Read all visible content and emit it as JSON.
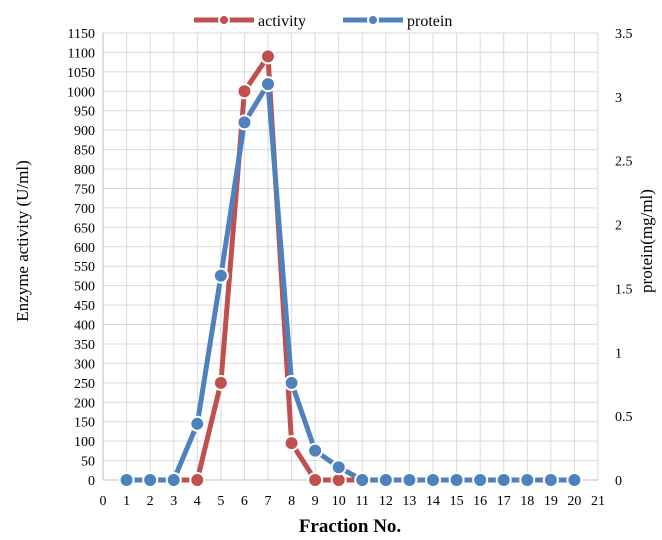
{
  "chart_data": {
    "type": "line",
    "xlabel": "Fraction No.",
    "ylabel_left": "Enzyme activity (U/ml)",
    "ylabel_right": "protein(mg/ml)",
    "xlim": [
      0,
      21
    ],
    "ylim_left": [
      0,
      1150
    ],
    "ylim_right": [
      0,
      3.5
    ],
    "x_ticks": [
      0,
      1,
      2,
      3,
      4,
      5,
      6,
      7,
      8,
      9,
      10,
      11,
      12,
      13,
      14,
      15,
      16,
      17,
      18,
      19,
      20,
      21
    ],
    "y_left_ticks": [
      0,
      50,
      100,
      150,
      200,
      250,
      300,
      350,
      400,
      450,
      500,
      550,
      600,
      650,
      700,
      750,
      800,
      850,
      900,
      950,
      1000,
      1050,
      1100,
      1150
    ],
    "y_right_ticks": [
      "0",
      "0.5",
      "1",
      "1.5",
      "2",
      "2.5",
      "3",
      "3.5"
    ],
    "grid": true,
    "legend_position": "top-center",
    "series": [
      {
        "name": "activity",
        "axis": "left",
        "color": "#c0504d",
        "x": [
          1,
          2,
          3,
          4,
          5,
          6,
          7,
          8,
          9,
          10,
          11,
          12,
          13,
          14,
          15,
          16,
          17,
          18,
          19,
          20
        ],
        "values": [
          0,
          0,
          0,
          0,
          250,
          1000,
          1090,
          95,
          0,
          0,
          0,
          0,
          0,
          0,
          0,
          0,
          0,
          0,
          0,
          0
        ]
      },
      {
        "name": "protein",
        "axis": "right",
        "color": "#4f81bd",
        "x": [
          1,
          2,
          3,
          4,
          5,
          6,
          7,
          8,
          9,
          10,
          11,
          12,
          13,
          14,
          15,
          16,
          17,
          18,
          19,
          20
        ],
        "values": [
          0,
          0,
          0,
          0.44,
          1.6,
          2.8,
          3.1,
          0.76,
          0.23,
          0.1,
          0,
          0,
          0,
          0,
          0,
          0,
          0,
          0,
          0,
          0
        ]
      }
    ]
  }
}
